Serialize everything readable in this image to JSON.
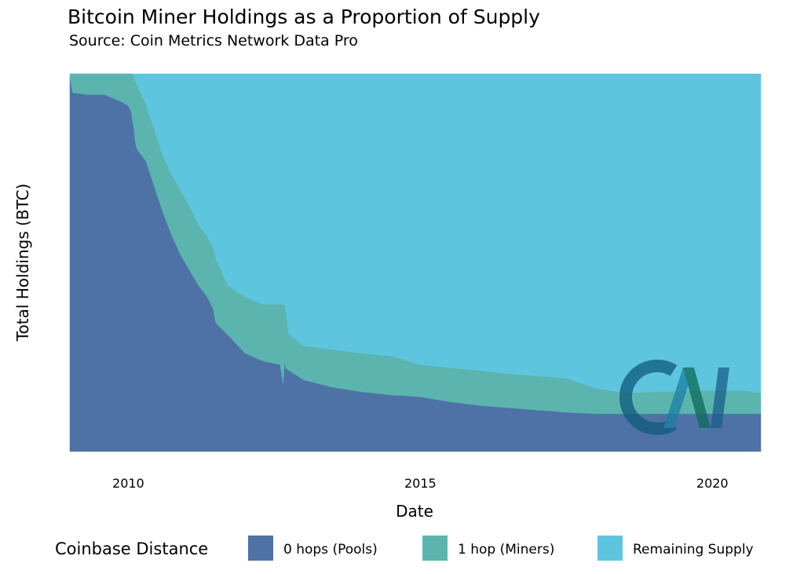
{
  "chart_data": {
    "type": "area",
    "stacked": "fill",
    "title": "Bitcoin Miner Holdings as a Proportion of Supply",
    "subtitle": "Source: Coin Metrics Network Data Pro",
    "xlabel": "Date",
    "ylabel": "Total Holdings (BTC)",
    "xlim": [
      2009.0,
      2020.83
    ],
    "ylim": [
      0,
      1
    ],
    "y_tick_labels": false,
    "x_ticks": [
      "2010",
      "2015",
      "2020"
    ],
    "grid": false,
    "legend": {
      "title": "Coinbase Distance",
      "position": "bottom",
      "entries": [
        "0 hops (Pools)",
        "1 hop (Miners)",
        "Remaining Supply"
      ]
    },
    "watermark": "CM",
    "x": [
      2009.0,
      2009.05,
      2009.3,
      2009.6,
      2009.9,
      2010.0,
      2010.05,
      2010.1,
      2010.12,
      2010.15,
      2010.3,
      2010.45,
      2010.6,
      2010.75,
      2010.9,
      2011.05,
      2011.2,
      2011.35,
      2011.45,
      2011.5,
      2011.7,
      2012.0,
      2012.3,
      2012.6,
      2012.65,
      2012.68,
      2012.7,
      2012.75,
      2013.0,
      2013.5,
      2014.0,
      2014.5,
      2015.0,
      2015.5,
      2016.0,
      2016.5,
      2017.0,
      2017.5,
      2018.0,
      2018.5,
      2019.0,
      2019.5,
      2020.0,
      2020.5,
      2020.83
    ],
    "series": [
      {
        "name": "0 hops (Pools)",
        "color": "#4e72a6",
        "values": [
          0.99,
          0.95,
          0.945,
          0.945,
          0.925,
          0.915,
          0.9,
          0.85,
          0.82,
          0.8,
          0.77,
          0.7,
          0.63,
          0.57,
          0.52,
          0.48,
          0.44,
          0.41,
          0.38,
          0.34,
          0.31,
          0.26,
          0.24,
          0.23,
          0.18,
          0.24,
          0.22,
          0.215,
          0.19,
          0.17,
          0.158,
          0.15,
          0.145,
          0.132,
          0.122,
          0.116,
          0.11,
          0.104,
          0.1,
          0.1,
          0.1,
          0.1,
          0.1,
          0.1,
          0.1
        ]
      },
      {
        "name": "1 hop (Miners)",
        "color": "#5bb5ae",
        "values": [
          0.01,
          0.05,
          0.055,
          0.055,
          0.075,
          0.085,
          0.1,
          0.145,
          0.16,
          0.17,
          0.15,
          0.15,
          0.15,
          0.16,
          0.17,
          0.17,
          0.16,
          0.16,
          0.16,
          0.17,
          0.13,
          0.15,
          0.15,
          0.16,
          0.21,
          0.15,
          0.15,
          0.095,
          0.09,
          0.1,
          0.102,
          0.103,
          0.085,
          0.09,
          0.093,
          0.09,
          0.09,
          0.09,
          0.068,
          0.055,
          0.058,
          0.06,
          0.062,
          0.062,
          0.055
        ]
      },
      {
        "name": "Remaining Supply",
        "color": "#5ec5df",
        "values": [
          0.0,
          0.0,
          0.0,
          0.0,
          0.0,
          0.0,
          0.0,
          0.005,
          0.02,
          0.03,
          0.08,
          0.15,
          0.22,
          0.27,
          0.31,
          0.35,
          0.4,
          0.43,
          0.46,
          0.49,
          0.56,
          0.59,
          0.61,
          0.61,
          0.61,
          0.61,
          0.63,
          0.69,
          0.72,
          0.73,
          0.74,
          0.747,
          0.77,
          0.778,
          0.785,
          0.794,
          0.8,
          0.806,
          0.832,
          0.845,
          0.842,
          0.84,
          0.838,
          0.838,
          0.845
        ]
      }
    ]
  }
}
